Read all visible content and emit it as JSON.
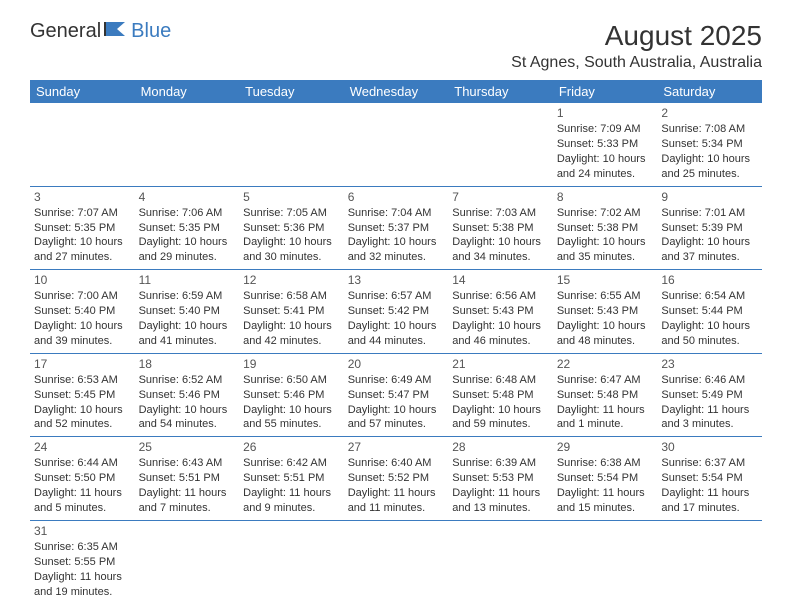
{
  "logo": {
    "part1": "General",
    "part2": "Blue"
  },
  "title": "August 2025",
  "location": "St Agnes, South Australia, Australia",
  "day_headers": [
    "Sunday",
    "Monday",
    "Tuesday",
    "Wednesday",
    "Thursday",
    "Friday",
    "Saturday"
  ],
  "colors": {
    "header_bg": "#3b7bbf",
    "header_text": "#ffffff",
    "border": "#3b7bbf",
    "text": "#333333",
    "logo_blue": "#3b7bbf"
  },
  "weeks": [
    [
      null,
      null,
      null,
      null,
      null,
      {
        "n": "1",
        "sunrise": "7:09 AM",
        "sunset": "5:33 PM",
        "daylight": "10 hours and 24 minutes."
      },
      {
        "n": "2",
        "sunrise": "7:08 AM",
        "sunset": "5:34 PM",
        "daylight": "10 hours and 25 minutes."
      }
    ],
    [
      {
        "n": "3",
        "sunrise": "7:07 AM",
        "sunset": "5:35 PM",
        "daylight": "10 hours and 27 minutes."
      },
      {
        "n": "4",
        "sunrise": "7:06 AM",
        "sunset": "5:35 PM",
        "daylight": "10 hours and 29 minutes."
      },
      {
        "n": "5",
        "sunrise": "7:05 AM",
        "sunset": "5:36 PM",
        "daylight": "10 hours and 30 minutes."
      },
      {
        "n": "6",
        "sunrise": "7:04 AM",
        "sunset": "5:37 PM",
        "daylight": "10 hours and 32 minutes."
      },
      {
        "n": "7",
        "sunrise": "7:03 AM",
        "sunset": "5:38 PM",
        "daylight": "10 hours and 34 minutes."
      },
      {
        "n": "8",
        "sunrise": "7:02 AM",
        "sunset": "5:38 PM",
        "daylight": "10 hours and 35 minutes."
      },
      {
        "n": "9",
        "sunrise": "7:01 AM",
        "sunset": "5:39 PM",
        "daylight": "10 hours and 37 minutes."
      }
    ],
    [
      {
        "n": "10",
        "sunrise": "7:00 AM",
        "sunset": "5:40 PM",
        "daylight": "10 hours and 39 minutes."
      },
      {
        "n": "11",
        "sunrise": "6:59 AM",
        "sunset": "5:40 PM",
        "daylight": "10 hours and 41 minutes."
      },
      {
        "n": "12",
        "sunrise": "6:58 AM",
        "sunset": "5:41 PM",
        "daylight": "10 hours and 42 minutes."
      },
      {
        "n": "13",
        "sunrise": "6:57 AM",
        "sunset": "5:42 PM",
        "daylight": "10 hours and 44 minutes."
      },
      {
        "n": "14",
        "sunrise": "6:56 AM",
        "sunset": "5:43 PM",
        "daylight": "10 hours and 46 minutes."
      },
      {
        "n": "15",
        "sunrise": "6:55 AM",
        "sunset": "5:43 PM",
        "daylight": "10 hours and 48 minutes."
      },
      {
        "n": "16",
        "sunrise": "6:54 AM",
        "sunset": "5:44 PM",
        "daylight": "10 hours and 50 minutes."
      }
    ],
    [
      {
        "n": "17",
        "sunrise": "6:53 AM",
        "sunset": "5:45 PM",
        "daylight": "10 hours and 52 minutes."
      },
      {
        "n": "18",
        "sunrise": "6:52 AM",
        "sunset": "5:46 PM",
        "daylight": "10 hours and 54 minutes."
      },
      {
        "n": "19",
        "sunrise": "6:50 AM",
        "sunset": "5:46 PM",
        "daylight": "10 hours and 55 minutes."
      },
      {
        "n": "20",
        "sunrise": "6:49 AM",
        "sunset": "5:47 PM",
        "daylight": "10 hours and 57 minutes."
      },
      {
        "n": "21",
        "sunrise": "6:48 AM",
        "sunset": "5:48 PM",
        "daylight": "10 hours and 59 minutes."
      },
      {
        "n": "22",
        "sunrise": "6:47 AM",
        "sunset": "5:48 PM",
        "daylight": "11 hours and 1 minute."
      },
      {
        "n": "23",
        "sunrise": "6:46 AM",
        "sunset": "5:49 PM",
        "daylight": "11 hours and 3 minutes."
      }
    ],
    [
      {
        "n": "24",
        "sunrise": "6:44 AM",
        "sunset": "5:50 PM",
        "daylight": "11 hours and 5 minutes."
      },
      {
        "n": "25",
        "sunrise": "6:43 AM",
        "sunset": "5:51 PM",
        "daylight": "11 hours and 7 minutes."
      },
      {
        "n": "26",
        "sunrise": "6:42 AM",
        "sunset": "5:51 PM",
        "daylight": "11 hours and 9 minutes."
      },
      {
        "n": "27",
        "sunrise": "6:40 AM",
        "sunset": "5:52 PM",
        "daylight": "11 hours and 11 minutes."
      },
      {
        "n": "28",
        "sunrise": "6:39 AM",
        "sunset": "5:53 PM",
        "daylight": "11 hours and 13 minutes."
      },
      {
        "n": "29",
        "sunrise": "6:38 AM",
        "sunset": "5:54 PM",
        "daylight": "11 hours and 15 minutes."
      },
      {
        "n": "30",
        "sunrise": "6:37 AM",
        "sunset": "5:54 PM",
        "daylight": "11 hours and 17 minutes."
      }
    ],
    [
      {
        "n": "31",
        "sunrise": "6:35 AM",
        "sunset": "5:55 PM",
        "daylight": "11 hours and 19 minutes."
      },
      null,
      null,
      null,
      null,
      null,
      null
    ]
  ],
  "labels": {
    "sunrise": "Sunrise: ",
    "sunset": "Sunset: ",
    "daylight": "Daylight: "
  }
}
